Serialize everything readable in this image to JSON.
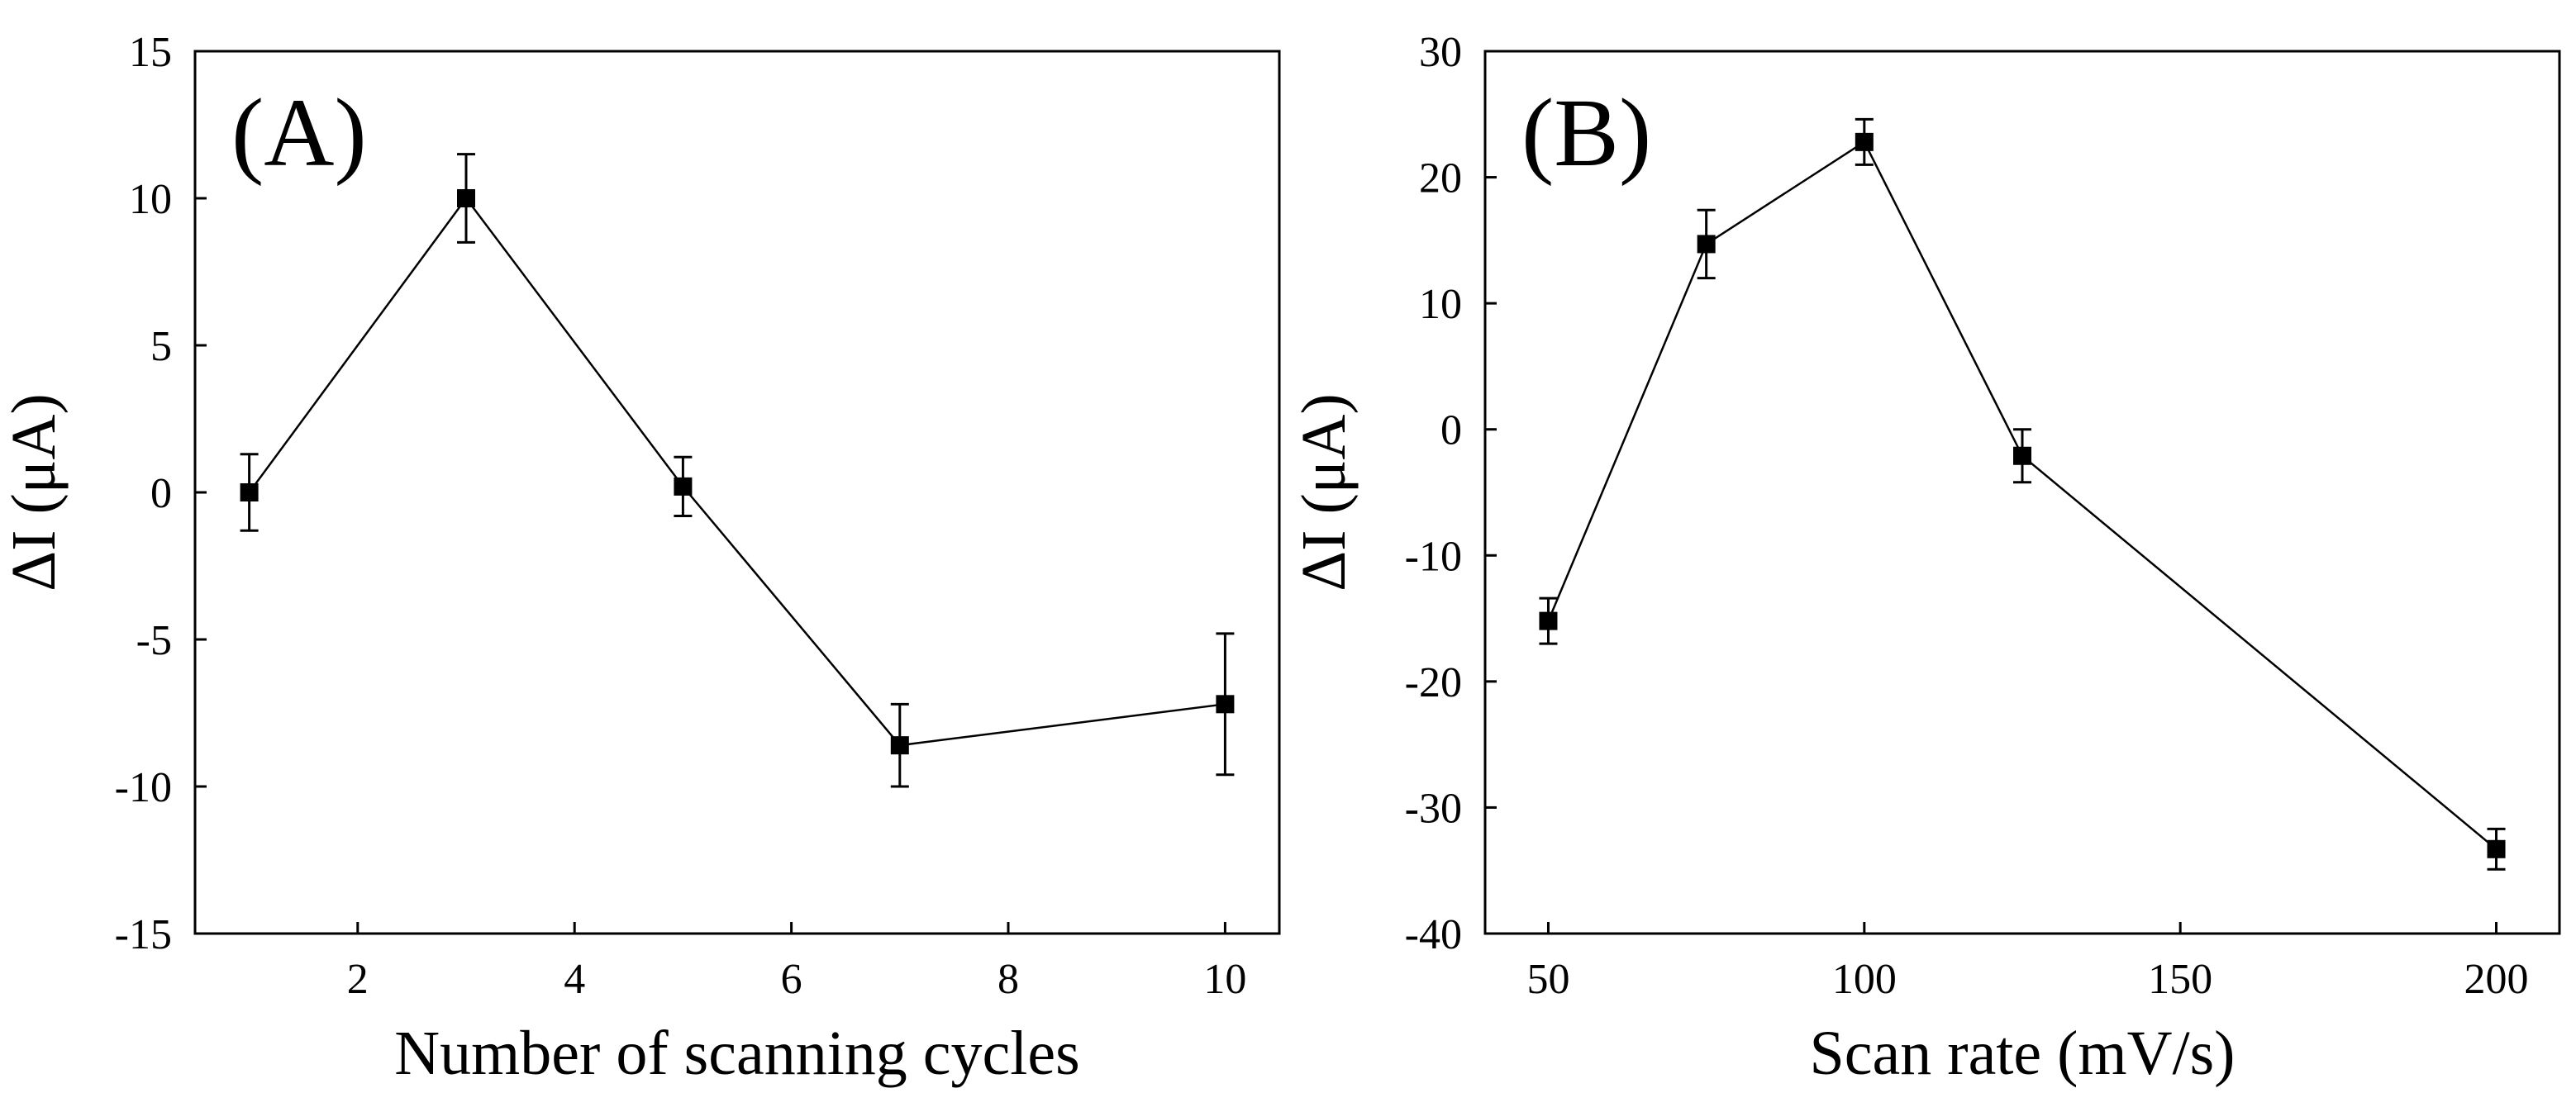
{
  "chart_data": [
    {
      "type": "line",
      "panel_label": "(A)",
      "title": "",
      "xlabel": "Number of scanning cycles",
      "ylabel": "ΔI (μA)",
      "xlim": [
        0.5,
        10.5
      ],
      "ylim": [
        -15,
        15
      ],
      "xticks": [
        2,
        4,
        6,
        8,
        10
      ],
      "xtick_labels": [
        "2",
        "4",
        "6",
        "8",
        "10"
      ],
      "yticks": [
        -15,
        -10,
        -5,
        0,
        5,
        10,
        15
      ],
      "ytick_labels": [
        "-15",
        "-10",
        "-5",
        "0",
        "5",
        "10",
        "15"
      ],
      "grid": false,
      "marker": "square",
      "color": "#000000",
      "series": [
        {
          "name": "ΔI",
          "x": [
            1,
            3,
            5,
            7,
            10
          ],
          "y": [
            0,
            10,
            0.2,
            -8.6,
            -7.2
          ],
          "error": [
            1.3,
            1.5,
            1.0,
            1.4,
            2.4
          ]
        }
      ]
    },
    {
      "type": "line",
      "panel_label": "(B)",
      "title": "",
      "xlabel": "Scan rate (mV/s)",
      "ylabel": "ΔI (μA)",
      "xlim": [
        40,
        210
      ],
      "ylim": [
        -40,
        30
      ],
      "xticks": [
        50,
        100,
        150,
        200
      ],
      "xtick_labels": [
        "50",
        "100",
        "150",
        "200"
      ],
      "yticks": [
        -40,
        -30,
        -20,
        -10,
        0,
        10,
        20,
        30
      ],
      "ytick_labels": [
        "-40",
        "-30",
        "-20",
        "-10",
        "0",
        "10",
        "20",
        "30"
      ],
      "grid": false,
      "marker": "square",
      "color": "#000000",
      "series": [
        {
          "name": "ΔI",
          "x": [
            50,
            75,
            100,
            125,
            200
          ],
          "y": [
            -15.2,
            14.7,
            22.8,
            -2.1,
            -33.3
          ],
          "error": [
            1.8,
            2.7,
            1.8,
            2.1,
            1.6
          ]
        }
      ]
    }
  ]
}
